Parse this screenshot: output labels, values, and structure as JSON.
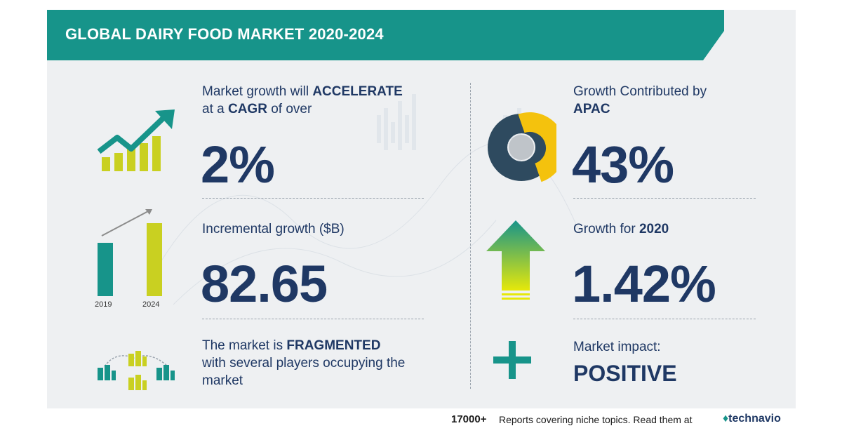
{
  "header": {
    "title": "GLOBAL DAIRY FOOD MARKET 2020-2024"
  },
  "cagr": {
    "line1_pre": "Market growth will ",
    "line1_bold": "ACCELERATE",
    "line2_pre": "at a ",
    "line2_bold": "CAGR",
    "line2_post": " of over",
    "value": "2%"
  },
  "incremental": {
    "label": "Incremental growth ($B)",
    "value": "82.65",
    "bar_labels": [
      "2019",
      "2024"
    ]
  },
  "fragmented": {
    "line1_pre": "The market is ",
    "line1_bold": "FRAGMENTED",
    "line2": "with several players occupying the",
    "line3": "market"
  },
  "apac": {
    "line1": "Growth Contributed by",
    "line2_bold": "APAC",
    "value": "43%"
  },
  "growth2020": {
    "label_pre": "Growth for ",
    "label_bold": "2020",
    "value": "1.42%"
  },
  "impact": {
    "label": "Market impact:",
    "value": "POSITIVE"
  },
  "footer": {
    "count": "17000+",
    "text": "Reports covering niche topics. Read them at",
    "brand": "technavio"
  },
  "colors": {
    "teal": "#17948a",
    "navy": "#1f3864",
    "yellow": "#c9d021",
    "gold": "#f4c20d",
    "donut_dark": "#2e4a5f"
  },
  "icons": {
    "growth": "trend-up-arrow-icon",
    "bars": "bar-comparison-icon",
    "fragment": "building-network-icon",
    "donut": "donut-chart-icon",
    "up": "up-arrow-icon",
    "plus": "plus-icon"
  }
}
